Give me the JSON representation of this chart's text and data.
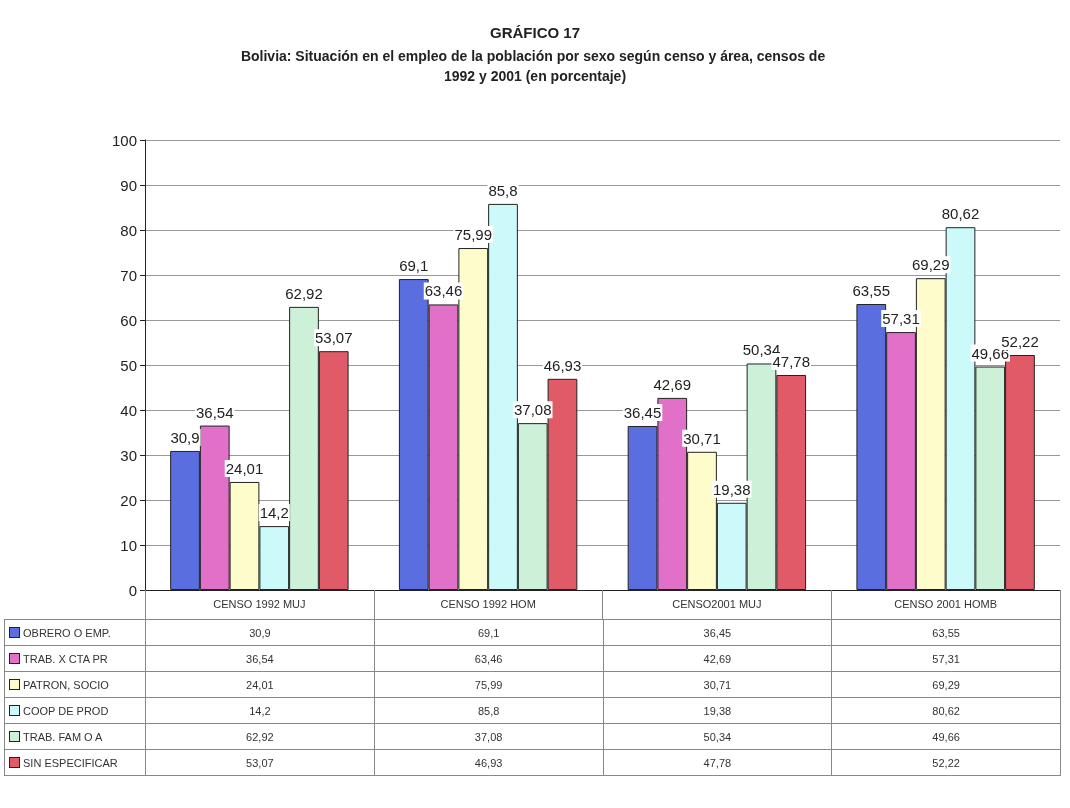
{
  "chart_data": {
    "type": "bar",
    "title": "GRÁFICO 17",
    "subtitle": "Bolivia: Situación en el empleo de la población por sexo según censo y área, censos de 1992 y 2001 (en porcentaje)",
    "categories": [
      "CENSO 1992 MUJ",
      "CENSO 1992 HOM",
      "CENSO2001 MUJ",
      "CENSO 2001 HOMB"
    ],
    "series": [
      {
        "name": "OBRERO O EMP.",
        "color": "#5a6ee0",
        "values": [
          30.9,
          69.1,
          36.45,
          63.55
        ],
        "value_labels": [
          "30,9",
          "69,1",
          "36,45",
          "63,55"
        ]
      },
      {
        "name": "TRAB. X CTA PR",
        "color": "#e070c8",
        "values": [
          36.54,
          63.46,
          42.69,
          57.31
        ],
        "value_labels": [
          "36,54",
          "63,46",
          "42,69",
          "57,31"
        ]
      },
      {
        "name": "PATRON, SOCIO",
        "color": "#fffccc",
        "values": [
          24.01,
          75.99,
          30.71,
          69.29
        ],
        "value_labels": [
          "24,01",
          "75,99",
          "30,71",
          "69,29"
        ]
      },
      {
        "name": "COOP DE PROD",
        "color": "#ccfafa",
        "values": [
          14.2,
          85.8,
          19.38,
          80.62
        ],
        "value_labels": [
          "14,2",
          "85,8",
          "19,38",
          "80,62"
        ]
      },
      {
        "name": "TRAB. FAM O A",
        "color": "#ccf0d8",
        "values": [
          62.92,
          37.08,
          50.34,
          49.66
        ],
        "value_labels": [
          "62,92",
          "37,08",
          "50,34",
          "49,66"
        ]
      },
      {
        "name": "SIN ESPECIFICAR",
        "color": "#e05a68",
        "values": [
          53.07,
          46.93,
          47.78,
          52.22
        ],
        "value_labels": [
          "53,07",
          "46,93",
          "47,78",
          "52,22"
        ]
      }
    ],
    "ylim": [
      0,
      100
    ],
    "yticks": [
      0,
      10,
      20,
      30,
      40,
      50,
      60,
      70,
      80,
      90,
      100
    ],
    "grid": "y",
    "legend": "bottom"
  }
}
